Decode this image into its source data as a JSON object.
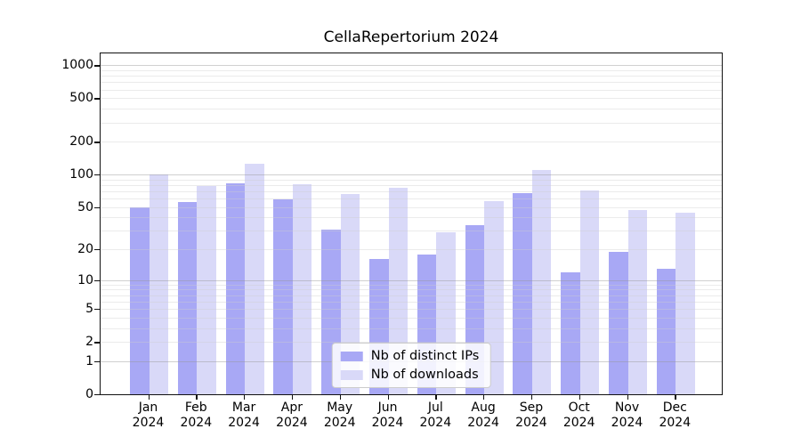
{
  "chart_data": {
    "type": "bar",
    "title": "CellaRepertorium 2024",
    "categories": [
      "Jan",
      "Feb",
      "Mar",
      "Apr",
      "May",
      "Jun",
      "Jul",
      "Aug",
      "Sep",
      "Oct",
      "Nov",
      "Dec"
    ],
    "category_year": "2024",
    "series": [
      {
        "name": "Nb of distinct IPs",
        "color": "#a8a8f5",
        "values": [
          50,
          56,
          83,
          59,
          31,
          16,
          18,
          34,
          68,
          12,
          19,
          13
        ]
      },
      {
        "name": "Nb of downloads",
        "color": "#d9d9f8",
        "values": [
          100,
          78,
          125,
          81,
          66,
          75,
          29,
          57,
          111,
          71,
          47,
          44
        ]
      }
    ],
    "y_scale": "log1p",
    "ylim": [
      0,
      1290
    ],
    "y_ticks": [
      0,
      1,
      2,
      5,
      10,
      20,
      50,
      100,
      200,
      500,
      1000
    ],
    "y_tick_labels": [
      "0",
      "1",
      "2",
      "5",
      "10",
      "20",
      "50",
      "100",
      "200",
      "500",
      "1000"
    ],
    "y_minor_ticks": [
      3,
      4,
      6,
      7,
      8,
      9,
      30,
      40,
      60,
      70,
      80,
      90,
      300,
      400,
      600,
      700,
      800,
      900
    ],
    "y_major_gridline_values": [
      1,
      10,
      100,
      1000
    ],
    "grid": "horizontal",
    "legend_position": "lower center",
    "spine_color": "#111111",
    "background_color": "#ffffff"
  }
}
